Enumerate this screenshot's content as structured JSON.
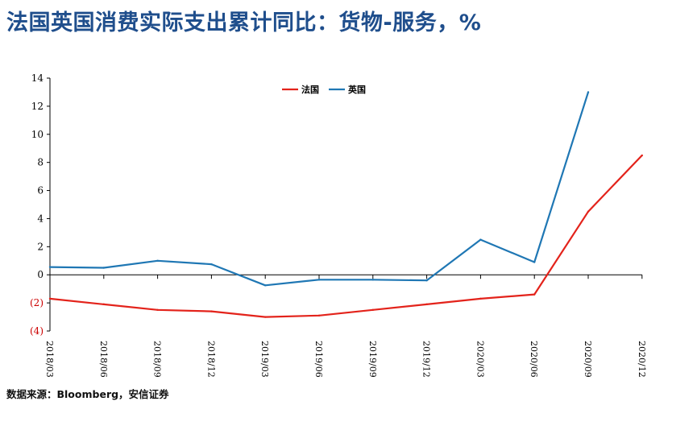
{
  "title": "法国英国消费实际支出累计同比：货物-服务，%",
  "source": "数据来源：Bloomberg，安信证券",
  "colors": {
    "title": "#1f4e8c",
    "france": "#e3231b",
    "uk": "#1f77b4",
    "negative_tick": "#cc0000"
  },
  "chart_data": {
    "type": "line",
    "title": "",
    "xlabel": "",
    "ylabel": "",
    "categories": [
      "2018/03",
      "2018/06",
      "2018/09",
      "2018/12",
      "2019/03",
      "2019/06",
      "2019/09",
      "2019/12",
      "2020/03",
      "2020/06",
      "2020/09",
      "2020/12"
    ],
    "ylim": [
      -4,
      14
    ],
    "yticks": [
      {
        "value": 14,
        "label": "14"
      },
      {
        "value": 12,
        "label": "12"
      },
      {
        "value": 10,
        "label": "10"
      },
      {
        "value": 8,
        "label": "8"
      },
      {
        "value": 6,
        "label": "6"
      },
      {
        "value": 4,
        "label": "4"
      },
      {
        "value": 2,
        "label": "2"
      },
      {
        "value": 0,
        "label": "0"
      },
      {
        "value": -2,
        "label": "(2)"
      },
      {
        "value": -4,
        "label": "(4)"
      }
    ],
    "legend_position": "top-center",
    "grid": false,
    "series": [
      {
        "name": "法国",
        "color": "#e3231b",
        "values": [
          -1.7,
          -2.1,
          -2.5,
          -2.6,
          -3.0,
          -2.9,
          -2.5,
          -2.1,
          -1.7,
          -1.4,
          4.5,
          8.5
        ]
      },
      {
        "name": "英国",
        "color": "#1f77b4",
        "values": [
          0.55,
          0.5,
          1.0,
          0.75,
          -0.75,
          -0.35,
          -0.35,
          -0.4,
          2.5,
          0.9,
          13.0,
          null
        ]
      }
    ]
  }
}
